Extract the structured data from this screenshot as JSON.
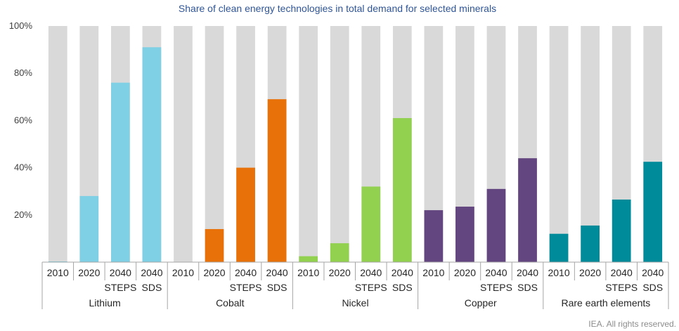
{
  "chart_data": {
    "type": "bar",
    "title": "Share of clean energy technologies in total demand for selected minerals",
    "ylim": [
      0,
      100
    ],
    "yticks": [
      {
        "value": 20,
        "label": "20%"
      },
      {
        "value": 40,
        "label": "40%"
      },
      {
        "value": 60,
        "label": "60%"
      },
      {
        "value": 80,
        "label": "80%"
      },
      {
        "value": 100,
        "label": "100%"
      }
    ],
    "background_value": 100,
    "background_color": "#d9d9d9",
    "groups": [
      {
        "name": "Lithium",
        "color": "#7fd0e4",
        "bars": [
          {
            "label": [
              "2010"
            ],
            "value": 0.3
          },
          {
            "label": [
              "2020"
            ],
            "value": 28
          },
          {
            "label": [
              "2040",
              "STEPS"
            ],
            "value": 76
          },
          {
            "label": [
              "2040",
              "SDS"
            ],
            "value": 91
          }
        ]
      },
      {
        "name": "Cobalt",
        "color": "#e8710a",
        "bars": [
          {
            "label": [
              "2010"
            ],
            "value": 0
          },
          {
            "label": [
              "2020"
            ],
            "value": 14
          },
          {
            "label": [
              "2040",
              "STEPS"
            ],
            "value": 40
          },
          {
            "label": [
              "2040",
              "SDS"
            ],
            "value": 69
          }
        ]
      },
      {
        "name": "Nickel",
        "color": "#92d050",
        "bars": [
          {
            "label": [
              "2010"
            ],
            "value": 2.5
          },
          {
            "label": [
              "2020"
            ],
            "value": 8
          },
          {
            "label": [
              "2040",
              "STEPS"
            ],
            "value": 32
          },
          {
            "label": [
              "2040",
              "SDS"
            ],
            "value": 61
          }
        ]
      },
      {
        "name": "Copper",
        "color": "#63467f",
        "bars": [
          {
            "label": [
              "2010"
            ],
            "value": 22
          },
          {
            "label": [
              "2020"
            ],
            "value": 23.5
          },
          {
            "label": [
              "2040",
              "STEPS"
            ],
            "value": 31
          },
          {
            "label": [
              "2040",
              "SDS"
            ],
            "value": 44
          }
        ]
      },
      {
        "name": "Rare earth elements",
        "color": "#008b9a",
        "bars": [
          {
            "label": [
              "2010"
            ],
            "value": 12
          },
          {
            "label": [
              "2020"
            ],
            "value": 15.5
          },
          {
            "label": [
              "2040",
              "STEPS"
            ],
            "value": 26.5
          },
          {
            "label": [
              "2040",
              "SDS"
            ],
            "value": 42.5
          }
        ]
      }
    ],
    "grid": false,
    "legend": "none"
  },
  "footer": {
    "credit": "IEA. All rights reserved."
  }
}
